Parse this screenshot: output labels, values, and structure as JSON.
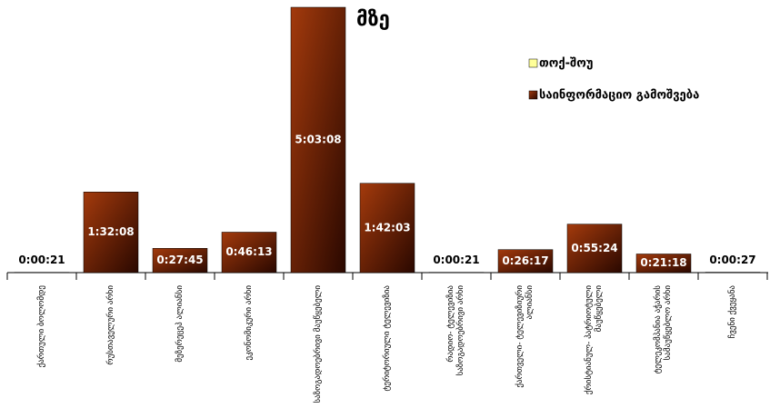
{
  "chart_data": {
    "type": "bar",
    "title": "მზე",
    "categories": [
      "ქართული ბოლომდე",
      "რუსთაველური არხი",
      "მეზერეცეპ ალიანსი",
      "ეკონომიკური არხი",
      "საზოგადოებრივი მაუწყებელი",
      "ტერიტორიული ტელევიზია",
      "რადიო- ტელევიზია საზოგადოებრივი არხი",
      "ქართველი- ტელევიზიური ალიანსი",
      "ქრისტიანულ- პატრიოტული მაუწყებელი",
      "ტელეკომპანია აჭარის სამაუწყებლო არხი",
      "ჩვენი ქვეყანა"
    ],
    "series": [
      {
        "name": "თოქ-შოუ",
        "color": "#ffff99",
        "values": [
          null,
          null,
          null,
          null,
          null,
          null,
          null,
          null,
          null,
          null,
          null
        ]
      },
      {
        "name": "საინფორმაციო გამოშვება",
        "color": "#8b2a0a",
        "values": [
          21,
          5528,
          1665,
          2773,
          18188,
          6123,
          21,
          1577,
          3324,
          1278,
          27
        ],
        "value_labels": [
          "0:00:21",
          "1:32:08",
          "0:27:45",
          "0:46:13",
          "5:03:08",
          "1:42:03",
          "0:00:21",
          "0:26:17",
          "0:55:24",
          "0:21:18",
          "0:00:27"
        ]
      }
    ],
    "legend": "upper right"
  }
}
